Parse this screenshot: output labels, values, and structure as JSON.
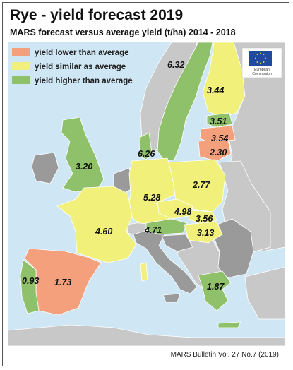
{
  "title": "Rye - yield forecast 2019",
  "subtitle": "MARS forecast versus average yield (t/ha) 2014 - 2018",
  "footer": "MARS Bulletin Vol. 27 No.7 (2019)",
  "legend": [
    {
      "label": "yield lower than average",
      "color": "#f4a07c"
    },
    {
      "label": "yield similar as average",
      "color": "#f0f07a"
    },
    {
      "label": "yield higher than average",
      "color": "#8fc06a"
    }
  ],
  "logo": {
    "line1": "European",
    "line2": "Commission"
  },
  "colors": {
    "sea": "#cfe6f5",
    "non_eu": "#c8c8c8",
    "no_data": "#9a9a9a"
  },
  "regions": {
    "sweden": {
      "value": "6.32"
    },
    "finland": {
      "value": "3.44"
    },
    "estonia": {
      "value": "3.51"
    },
    "latvia": {
      "value": "3.54"
    },
    "lithuania": {
      "value": "2.30"
    },
    "uk": {
      "value": "3.20"
    },
    "denmark": {
      "value": "6.26"
    },
    "germany": {
      "value": "5.28"
    },
    "poland": {
      "value": "2.77"
    },
    "czechia": {
      "value": "4.98"
    },
    "slovakia": {
      "value": "3.56"
    },
    "austria": {
      "value": "4.71"
    },
    "hungary": {
      "value": "3.13"
    },
    "france": {
      "value": "4.60"
    },
    "spain": {
      "value": "1.73"
    },
    "portugal": {
      "value": "0.93"
    },
    "greece": {
      "value": "1.87"
    }
  }
}
